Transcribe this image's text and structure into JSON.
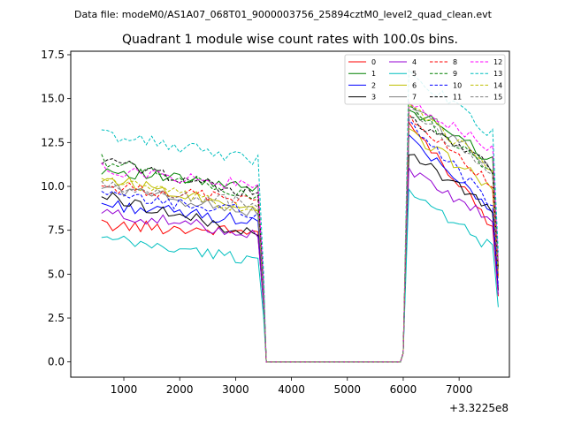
{
  "chart_data": {
    "type": "line",
    "suptitle": "Data file: modeM0/AS1A07_068T01_9000003756_25894cztM0_level2_quad_clean.evt",
    "title": "Quadrant 1 module wise count rates with 100.0s bins.",
    "xlabel": "",
    "ylabel": "",
    "x_offset_label": "+3.3225e8",
    "xlim": [
      50,
      7900
    ],
    "ylim": [
      -0.87,
      17.7
    ],
    "xticks": [
      1000,
      2000,
      3000,
      4000,
      5000,
      6000,
      7000
    ],
    "xtick_labels": [
      "1000",
      "2000",
      "3000",
      "4000",
      "5000",
      "6000",
      "7000"
    ],
    "yticks": [
      0.0,
      2.5,
      5.0,
      7.5,
      10.0,
      12.5,
      15.0,
      17.5
    ],
    "ytick_labels": [
      "0.0",
      "2.5",
      "5.0",
      "7.5",
      "10.0",
      "12.5",
      "15.0",
      "17.5"
    ],
    "legend_position": "top-right",
    "legend_columns": 4,
    "segments": {
      "first": {
        "x_start": 600,
        "x_end": 3400,
        "step": 100
      },
      "gap": {
        "x_start": 3550,
        "x_end": 5950,
        "value": 0.0
      },
      "second": {
        "x_start": 6100,
        "x_end": 7600,
        "step": 100
      },
      "transition_points": [
        [
          3500,
          "ramp_down"
        ],
        [
          6000,
          "ramp_up"
        ],
        [
          7700,
          "ramp_down"
        ]
      ]
    },
    "series": [
      {
        "name": "0",
        "color": "#ff0000",
        "style": "solid",
        "first_level": 7.8,
        "first_end": 7.4,
        "second_start": 13.5,
        "second_end": 7.8
      },
      {
        "name": "1",
        "color": "#008000",
        "style": "solid",
        "first_level": 11.0,
        "first_end": 9.8,
        "second_start": 14.5,
        "second_end": 11.5
      },
      {
        "name": "2",
        "color": "#0000ff",
        "style": "solid",
        "first_level": 9.0,
        "first_end": 8.0,
        "second_start": 13.0,
        "second_end": 8.5
      },
      {
        "name": "3",
        "color": "#000000",
        "style": "solid",
        "first_level": 9.5,
        "first_end": 7.2,
        "second_start": 12.0,
        "second_end": 8.5
      },
      {
        "name": "4",
        "color": "#9400d3",
        "style": "solid",
        "first_level": 8.5,
        "first_end": 7.3,
        "second_start": 11.0,
        "second_end": 8.0
      },
      {
        "name": "5",
        "color": "#00bfbf",
        "style": "solid",
        "first_level": 7.0,
        "first_end": 5.8,
        "second_start": 9.5,
        "second_end": 6.5
      },
      {
        "name": "6",
        "color": "#bfbf00",
        "style": "solid",
        "first_level": 10.5,
        "first_end": 8.8,
        "second_start": 13.0,
        "second_end": 10.0
      },
      {
        "name": "7",
        "color": "#808080",
        "style": "solid",
        "first_level": 10.0,
        "first_end": 8.5,
        "second_start": 14.8,
        "second_end": 11.0
      },
      {
        "name": "8",
        "color": "#ff0000",
        "style": "dashed",
        "first_level": 10.0,
        "first_end": 9.2,
        "second_start": 14.0,
        "second_end": 10.0
      },
      {
        "name": "9",
        "color": "#008000",
        "style": "dashed",
        "first_level": 11.5,
        "first_end": 9.5,
        "second_start": 14.5,
        "second_end": 11.0
      },
      {
        "name": "10",
        "color": "#0000ff",
        "style": "dashed",
        "first_level": 9.5,
        "first_end": 8.5,
        "second_start": 13.5,
        "second_end": 9.0
      },
      {
        "name": "11",
        "color": "#000000",
        "style": "dashed",
        "first_level": 11.5,
        "first_end": 9.5,
        "second_start": 14.0,
        "second_end": 11.0
      },
      {
        "name": "12",
        "color": "#ff00ff",
        "style": "dashed",
        "first_level": 11.0,
        "first_end": 10.0,
        "second_start": 15.0,
        "second_end": 12.0
      },
      {
        "name": "13",
        "color": "#00bfbf",
        "style": "dashed",
        "first_level": 13.0,
        "first_end": 11.5,
        "second_start": 16.5,
        "second_end": 13.0
      },
      {
        "name": "14",
        "color": "#bfbf00",
        "style": "dashed",
        "first_level": 10.5,
        "first_end": 8.5,
        "second_start": 14.5,
        "second_end": 11.0
      },
      {
        "name": "15",
        "color": "#808080",
        "style": "dashed",
        "first_level": 10.0,
        "first_end": 9.0,
        "second_start": 14.5,
        "second_end": 10.5
      }
    ]
  }
}
